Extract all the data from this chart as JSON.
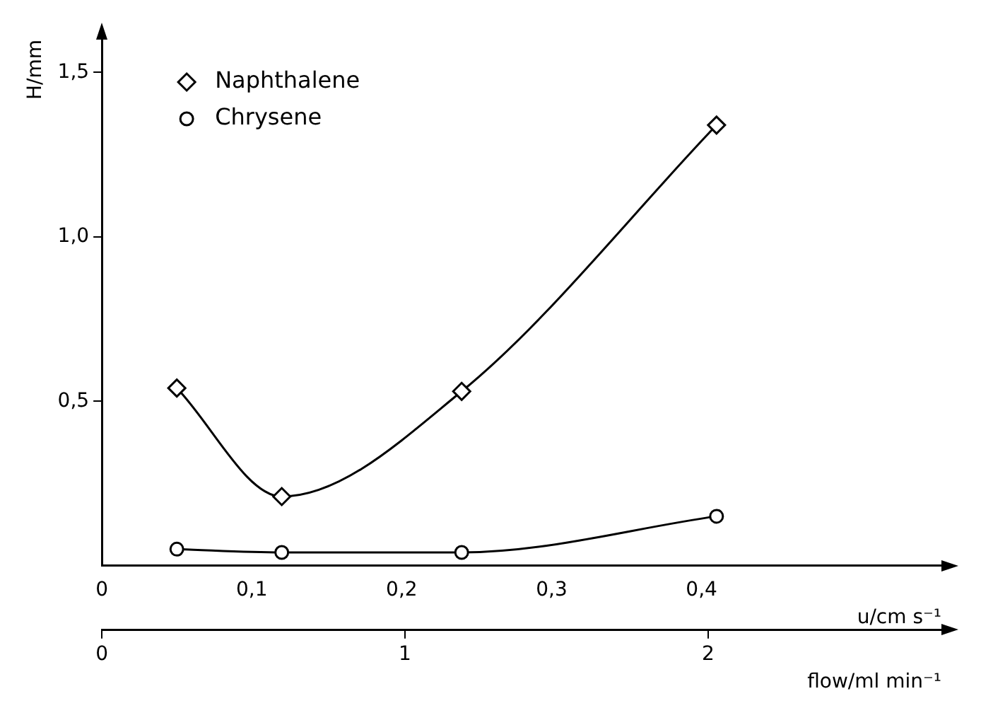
{
  "chart_data": {
    "type": "line",
    "xlabel": "u/cm s⁻¹",
    "x2label": "flow/ml min⁻¹",
    "ylabel": "H/mm",
    "xlim": [
      0,
      0.56
    ],
    "xticks": [
      {
        "value": 0,
        "label": "0"
      },
      {
        "value": 0.1,
        "label": "0,1"
      },
      {
        "value": 0.2,
        "label": "0,2"
      },
      {
        "value": 0.3,
        "label": "0,3"
      },
      {
        "value": 0.4,
        "label": "0,4"
      }
    ],
    "x2lim": [
      0,
      2.77
    ],
    "x2ticks": [
      0,
      1,
      2
    ],
    "ylim": [
      0,
      1.6
    ],
    "yticks": [
      {
        "value": 0.5,
        "label": "0,5"
      },
      {
        "value": 1.0,
        "label": "1,0"
      },
      {
        "value": 1.5,
        "label": "1,5"
      }
    ],
    "grid": false,
    "legend": "top left",
    "line_style": "solid",
    "series": [
      {
        "name": "Naphthalene",
        "color": "#000000",
        "marker": "diamond",
        "x": [
          0.05,
          0.12,
          0.24,
          0.41
        ],
        "values": [
          0.54,
          0.21,
          0.53,
          1.34
        ]
      },
      {
        "name": "Chrysene",
        "color": "#000000",
        "marker": "circle",
        "x": [
          0.05,
          0.12,
          0.24,
          0.41
        ],
        "values": [
          0.05,
          0.04,
          0.04,
          0.15
        ]
      }
    ]
  }
}
